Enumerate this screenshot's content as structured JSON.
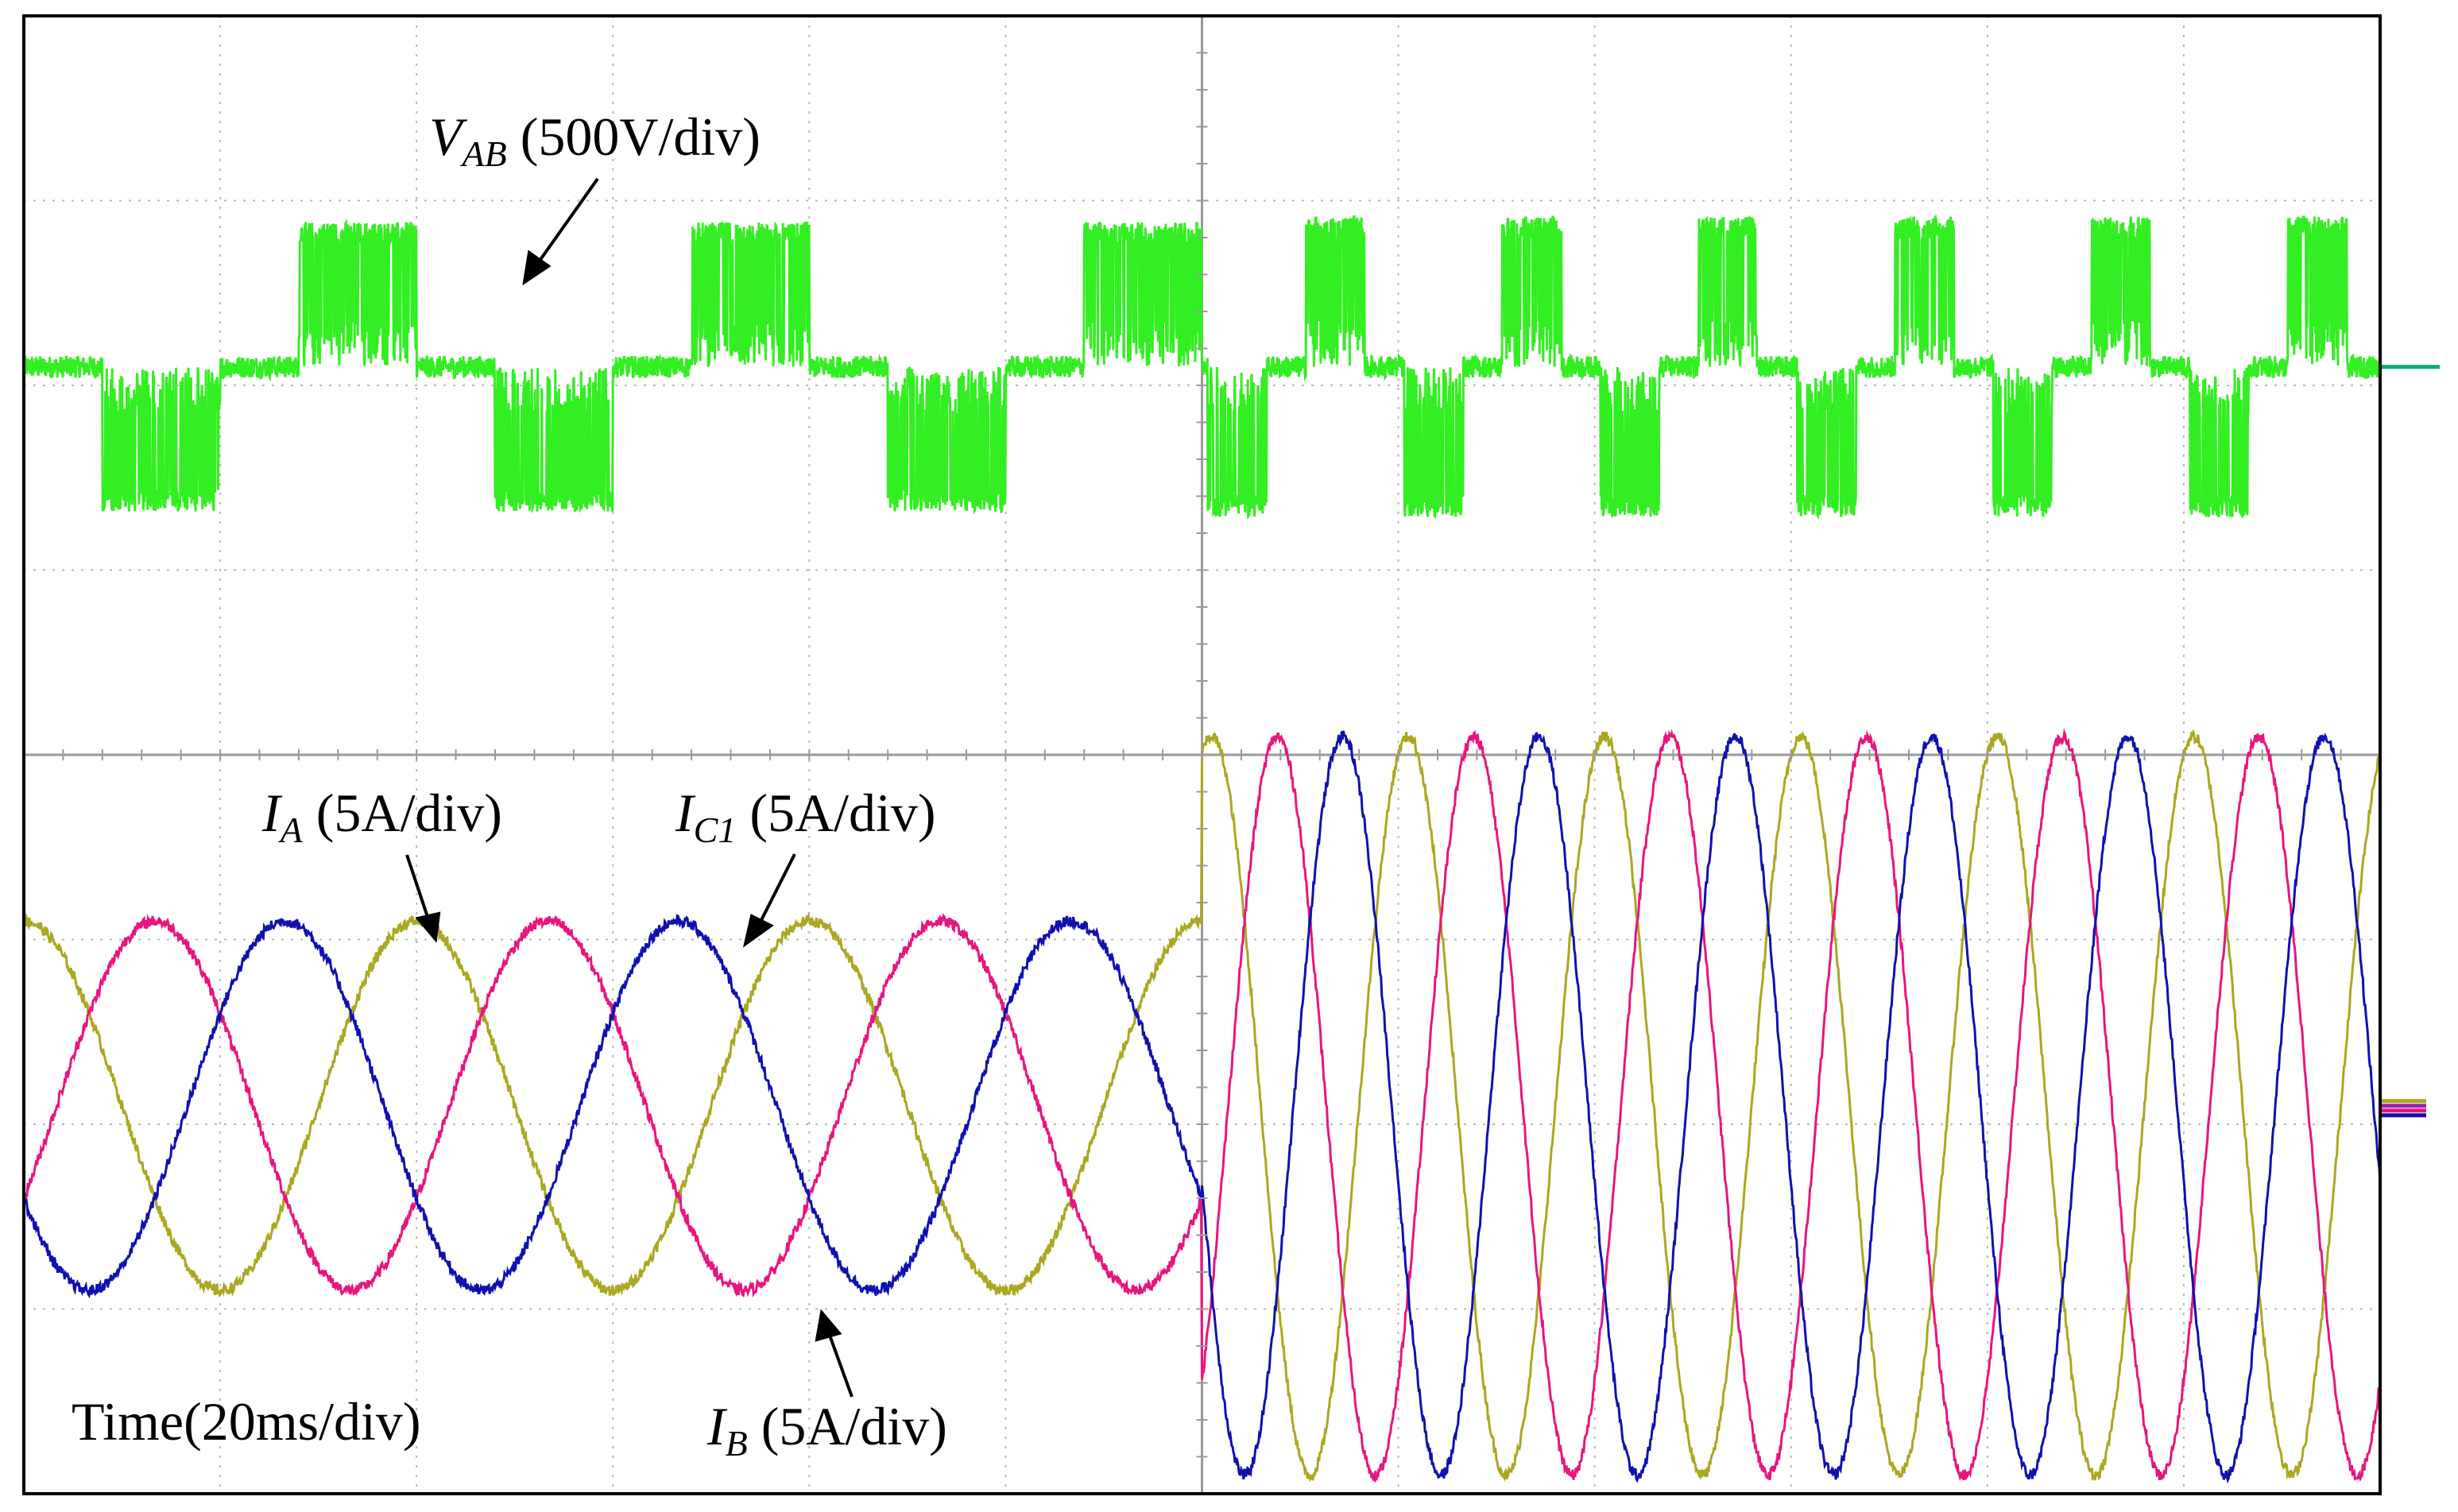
{
  "chart_data": {
    "type": "line",
    "title": "",
    "grid": true,
    "grid_divisions": {
      "x": 12,
      "y": 8
    },
    "time_scale": "Time(20ms/div)",
    "x_range_div": [
      0,
      12
    ],
    "y_range_div": [
      0,
      8
    ],
    "event_time_div": 6,
    "series": [
      {
        "name": "VAB",
        "label_main": "V",
        "label_sub": "AB",
        "label_scale": " (500V/div)",
        "color": "#33ee22",
        "channel_offset_div": 6.1,
        "pulse_amplitude_div": [
          0.7,
          0.73
        ],
        "fundamental_period_div": [
          2.0,
          1.0
        ],
        "note_phase_div": 0.6
      },
      {
        "name": "IA",
        "label_main": "I",
        "label_sub": "A",
        "label_scale": " (5A/div)",
        "color": "#aaa820",
        "channel_offset_div": 2.1,
        "amplitude_div": [
          1.0,
          2.0
        ],
        "period_div": [
          2.0,
          1.0
        ],
        "phase_peak_div": 0.0
      },
      {
        "name": "IB",
        "label_main": "I",
        "label_sub": "B",
        "label_scale": " (5A/div)",
        "color": "#e8157e",
        "channel_offset_div": 2.1,
        "amplitude_div": [
          1.0,
          2.0
        ],
        "period_div": [
          2.0,
          1.0
        ],
        "phase_peak_div": 0.667
      },
      {
        "name": "IC1",
        "label_main": "I",
        "label_sub": "C1",
        "label_scale": " (5A/div)",
        "color": "#1010b0",
        "channel_offset_div": 2.1,
        "amplitude_div": [
          1.0,
          2.0
        ],
        "period_div": [
          2.0,
          1.0
        ],
        "phase_peak_div": 1.333
      }
    ]
  }
}
